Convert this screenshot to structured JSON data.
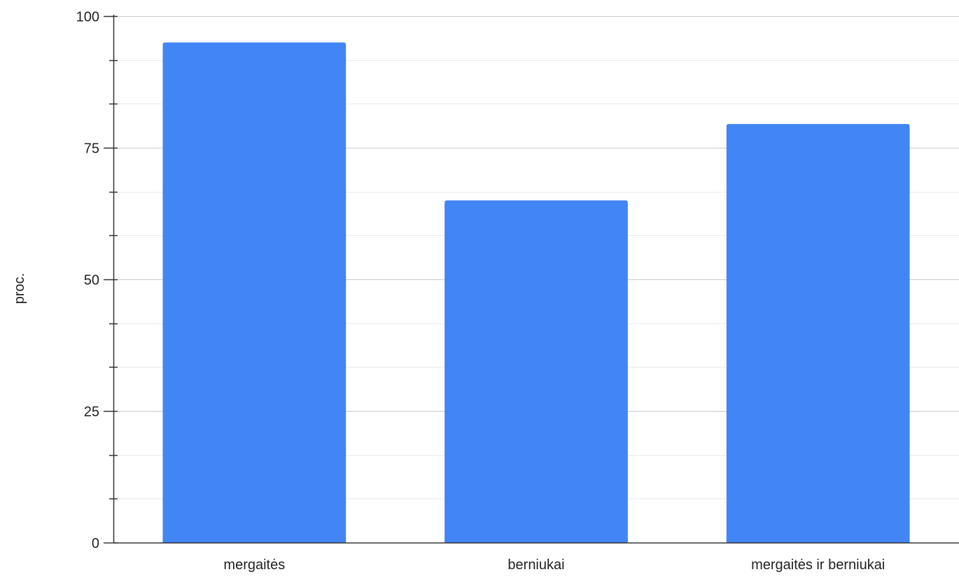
{
  "chart_data": {
    "type": "bar",
    "title": "",
    "xlabel": "",
    "ylabel": "proc.",
    "categories": [
      "mergaitės",
      "berniukai",
      "mergaitės ir berniukai"
    ],
    "values": [
      95,
      65,
      79.5
    ],
    "ylim": [
      0,
      100
    ],
    "yticks": [
      0,
      25,
      50,
      75,
      100
    ],
    "ytick_labels": [
      "0",
      "25",
      "50",
      "75",
      "100"
    ],
    "minor_step": 8.333,
    "grid": true,
    "legend": "none",
    "bar_color": "#4285f4",
    "gridline_color": "#cccccc",
    "minor_gridline_color": "#ebebeb",
    "axis_color": "#333333"
  }
}
